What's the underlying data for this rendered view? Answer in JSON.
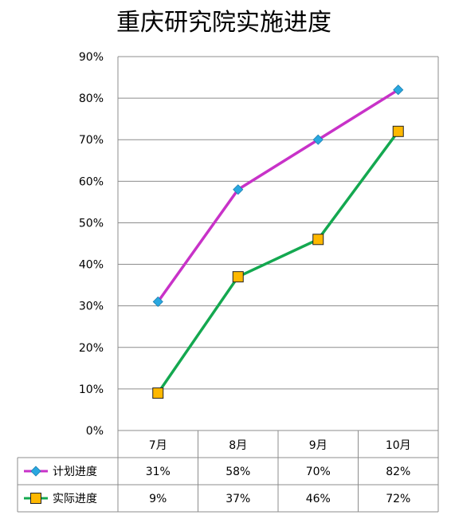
{
  "chart_data": {
    "type": "line",
    "title": "重庆研究院实施进度",
    "categories": [
      "7月",
      "8月",
      "9月",
      "10月"
    ],
    "y_ticks": [
      "0%",
      "10%",
      "20%",
      "30%",
      "40%",
      "50%",
      "60%",
      "70%",
      "80%",
      "90%"
    ],
    "ylim": [
      0,
      90
    ],
    "grid": true,
    "legend": "data-table",
    "series": [
      {
        "name": "计划进度",
        "values": [
          31,
          58,
          70,
          82
        ],
        "labels": [
          "31%",
          "58%",
          "70%",
          "82%"
        ],
        "line_color": "#c832c8",
        "marker": "diamond",
        "marker_color": "#29a8e0"
      },
      {
        "name": "实际进度",
        "values": [
          9,
          37,
          46,
          72
        ],
        "labels": [
          "9%",
          "37%",
          "46%",
          "72%"
        ],
        "line_color": "#14a850",
        "marker": "square",
        "marker_color": "#ffb800"
      }
    ]
  }
}
